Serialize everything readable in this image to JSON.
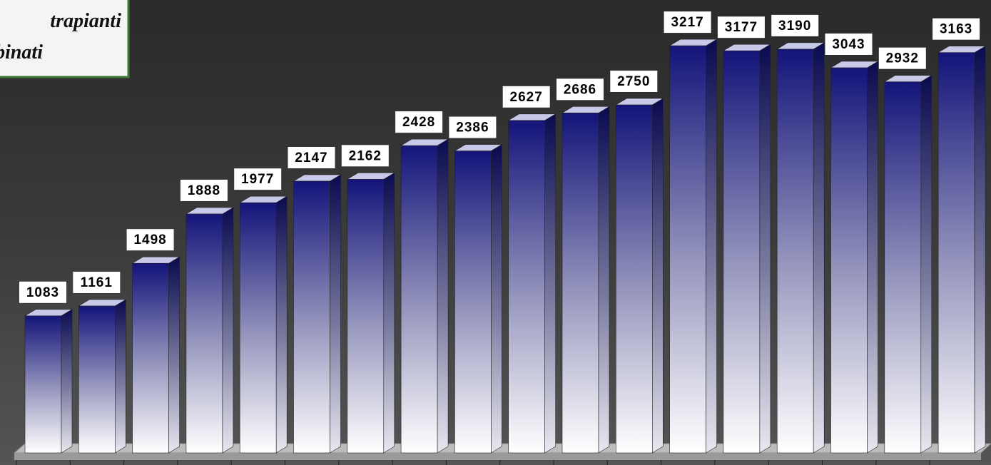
{
  "chart_data": {
    "type": "bar3d",
    "title": [
      "trapianti",
      "binati"
    ],
    "values": [
      1083,
      1161,
      1498,
      1888,
      1977,
      2147,
      2162,
      2428,
      2386,
      2627,
      2686,
      2750,
      3217,
      3177,
      3190,
      3043,
      2932,
      3163
    ],
    "ylim": [
      0,
      3550
    ],
    "color": "#14147a"
  }
}
